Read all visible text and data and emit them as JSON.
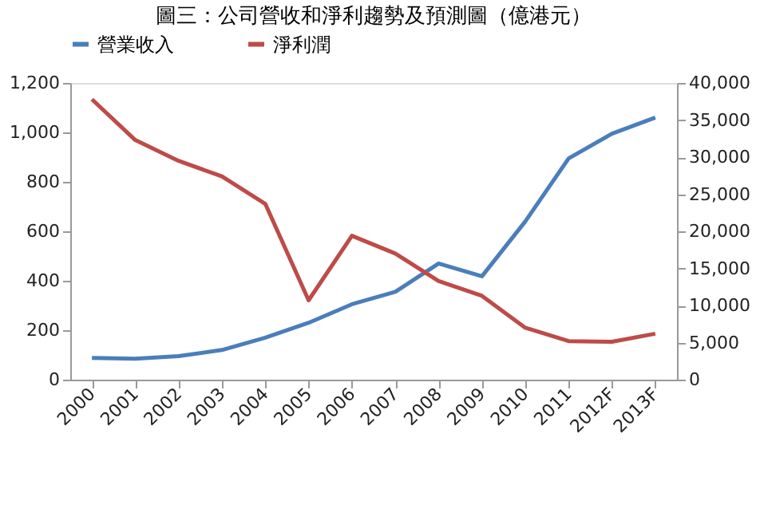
{
  "chart_data": {
    "type": "line",
    "title": "圖三：公司營收和淨利趨勢及預測圖（億港元）",
    "categories": [
      "2000",
      "2001",
      "2002",
      "2003",
      "2004",
      "2005",
      "2006",
      "2007",
      "2008",
      "2009",
      "2010",
      "2011",
      "2012F",
      "2013F"
    ],
    "series": [
      {
        "name": "營業收入",
        "color": "#4a7ebb",
        "values": [
          88,
          85,
          95,
          120,
          170,
          230,
          305,
          355,
          470,
          418,
          640,
          895,
          995,
          1060
        ]
      },
      {
        "name": "淨利潤",
        "color": "#be4b48",
        "axis": "y2",
        "values": [
          37800,
          32300,
          29500,
          27400,
          23700,
          10700,
          19400,
          17000,
          13300,
          11300,
          7000,
          5200,
          5100,
          6200
        ]
      }
    ],
    "ylim": [
      0,
      1200
    ],
    "yticks": [
      {
        "value": 0,
        "label": "0"
      },
      {
        "value": 200,
        "label": "200"
      },
      {
        "value": 400,
        "label": "400"
      },
      {
        "value": 600,
        "label": "600"
      },
      {
        "value": 800,
        "label": "800"
      },
      {
        "value": 1000,
        "label": "1,000"
      },
      {
        "value": 1200,
        "label": "1,200"
      }
    ],
    "y2lim": [
      0,
      40000
    ],
    "y2ticks": [
      {
        "value": 0,
        "label": "0"
      },
      {
        "value": 5000,
        "label": "5,000"
      },
      {
        "value": 10000,
        "label": "10,000"
      },
      {
        "value": 15000,
        "label": "15,000"
      },
      {
        "value": 20000,
        "label": "20,000"
      },
      {
        "value": 25000,
        "label": "25,000"
      },
      {
        "value": 30000,
        "label": "30,000"
      },
      {
        "value": 35000,
        "label": "35,000"
      },
      {
        "value": 40000,
        "label": "40,000"
      }
    ],
    "grid": false,
    "legend": "top",
    "marker": "none",
    "line_style": "solid"
  }
}
